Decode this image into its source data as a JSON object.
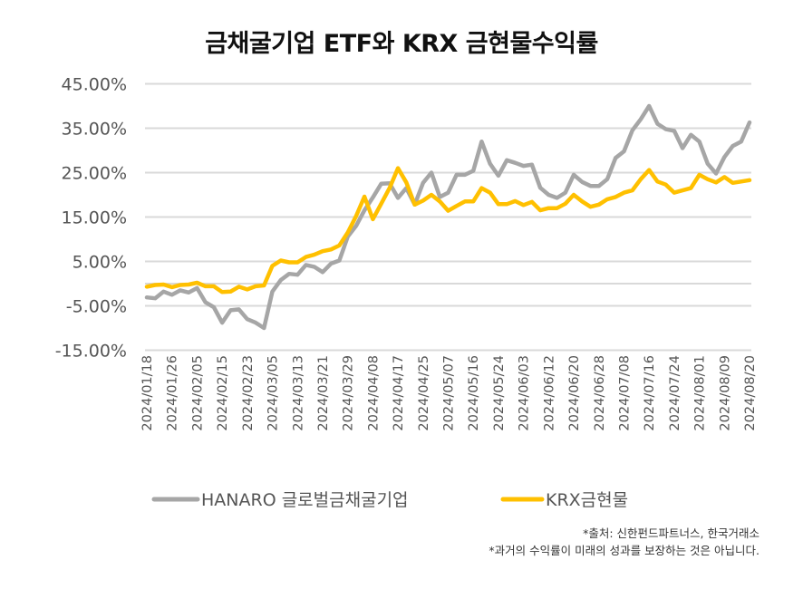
{
  "chart_data": {
    "type": "line",
    "title": "금채굴기업 ETF와 KRX 금현물수익률",
    "xlabel": "",
    "ylabel": "",
    "ylim": [
      -15,
      45
    ],
    "y_tick_labels": [
      "45.00%",
      "35.00%",
      "25.00%",
      "15.00%",
      "5.00%",
      "-5.00%",
      "-15.00%"
    ],
    "y_tick_values": [
      45,
      35,
      25,
      15,
      5,
      -5,
      -15
    ],
    "gridlines_at": [
      45,
      35,
      25,
      15,
      5,
      0,
      -5,
      -15
    ],
    "grid": true,
    "legend_position": "bottom",
    "x_tick_labels": [
      "2024/01/18",
      "2024/01/26",
      "2024/02/05",
      "2024/02/15",
      "2024/02/23",
      "2024/03/05",
      "2024/03/13",
      "2024/03/21",
      "2024/03/29",
      "2024/04/08",
      "2024/04/17",
      "2024/04/25",
      "2024/05/07",
      "2024/05/16",
      "2024/05/24",
      "2024/06/03",
      "2024/06/12",
      "2024/06/20",
      "2024/06/28",
      "2024/07/08",
      "2024/07/16",
      "2024/07/24",
      "2024/08/01",
      "2024/08/09",
      "2024/08/20"
    ],
    "x": [
      "2024/01/18",
      "2024/01/22",
      "2024/01/24",
      "2024/01/26",
      "2024/01/30",
      "2024/02/01",
      "2024/02/05",
      "2024/02/08",
      "2024/02/13",
      "2024/02/15",
      "2024/02/19",
      "2024/02/21",
      "2024/02/23",
      "2024/02/28",
      "2024/03/01",
      "2024/03/05",
      "2024/03/07",
      "2024/03/11",
      "2024/03/13",
      "2024/03/15",
      "2024/03/19",
      "2024/03/21",
      "2024/03/25",
      "2024/03/27",
      "2024/03/29",
      "2024/04/02",
      "2024/04/04",
      "2024/04/08",
      "2024/04/11",
      "2024/04/15",
      "2024/04/17",
      "2024/04/19",
      "2024/04/23",
      "2024/04/25",
      "2024/04/29",
      "2024/05/02",
      "2024/05/07",
      "2024/05/10",
      "2024/05/14",
      "2024/05/16",
      "2024/05/20",
      "2024/05/22",
      "2024/05/24",
      "2024/05/28",
      "2024/05/31",
      "2024/06/03",
      "2024/06/06",
      "2024/06/10",
      "2024/06/12",
      "2024/06/14",
      "2024/06/18",
      "2024/06/20",
      "2024/06/24",
      "2024/06/26",
      "2024/06/28",
      "2024/07/02",
      "2024/07/04",
      "2024/07/08",
      "2024/07/10",
      "2024/07/12",
      "2024/07/16",
      "2024/07/18",
      "2024/07/22",
      "2024/07/24",
      "2024/07/26",
      "2024/07/30",
      "2024/08/01",
      "2024/08/05",
      "2024/08/07",
      "2024/08/09",
      "2024/08/13",
      "2024/08/16",
      "2024/08/20"
    ],
    "series": [
      {
        "name": "HANARO 글로벌금채굴기업",
        "color": "#a6a6a6",
        "values": [
          -3.1,
          -3.3,
          -1.8,
          -2.5,
          -1.5,
          -2.0,
          -1.0,
          -4.2,
          -5.3,
          -8.8,
          -6.0,
          -5.8,
          -8.0,
          -8.8,
          -10.0,
          -1.8,
          0.8,
          2.2,
          2.0,
          4.2,
          3.8,
          2.6,
          4.5,
          5.2,
          10.6,
          13.0,
          16.5,
          19.4,
          22.5,
          22.6,
          19.3,
          21.5,
          17.8,
          22.7,
          25.0,
          19.5,
          20.5,
          24.5,
          24.5,
          25.4,
          32.0,
          27.0,
          24.3,
          27.8,
          27.2,
          26.5,
          26.8,
          21.6,
          20.0,
          19.3,
          20.5,
          24.5,
          22.9,
          22.0,
          22.0,
          23.5,
          28.3,
          29.8,
          34.5,
          37.0,
          40.0,
          36.0,
          34.8,
          34.4,
          30.5,
          33.5,
          32.0,
          27.0,
          24.8,
          28.5,
          31.0,
          32.0,
          36.3
        ]
      },
      {
        "name": "KRX금현물",
        "color": "#ffc000",
        "values": [
          -0.7,
          -0.3,
          -0.2,
          -0.8,
          -0.3,
          -0.2,
          0.2,
          -0.6,
          -0.6,
          -1.9,
          -1.8,
          -0.7,
          -1.3,
          -0.6,
          -0.4,
          4.0,
          5.2,
          4.8,
          4.8,
          6.0,
          6.5,
          7.3,
          7.7,
          8.6,
          11.5,
          15.2,
          19.6,
          14.5,
          18.0,
          21.5,
          26.0,
          22.8,
          17.8,
          18.7,
          20.0,
          18.5,
          16.4,
          17.5,
          18.5,
          18.5,
          21.5,
          20.5,
          17.9,
          17.9,
          18.6,
          17.7,
          18.4,
          16.5,
          17.0,
          17.0,
          18.0,
          20.0,
          18.5,
          17.3,
          17.8,
          19.0,
          19.5,
          20.5,
          21.0,
          23.5,
          25.6,
          23.0,
          22.3,
          20.5,
          21.0,
          21.5,
          24.5,
          23.5,
          22.8,
          24.0,
          22.7,
          23.0,
          23.3
        ]
      }
    ]
  },
  "notes": {
    "source": "*출처: 신한펀드파트너스, 한국거래소",
    "disclaimer": "*과거의 수익률이 미래의 성과를 보장하는 것은 아닙니다."
  }
}
